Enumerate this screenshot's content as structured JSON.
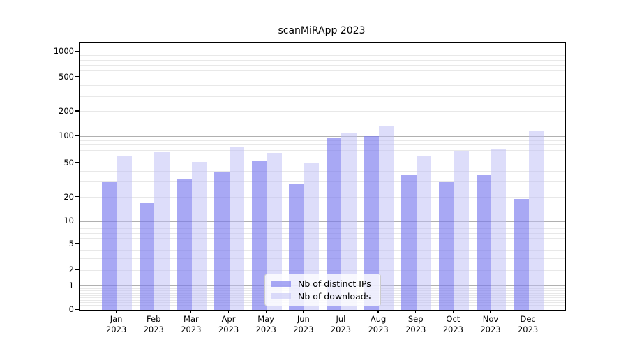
{
  "chart_data": {
    "type": "bar",
    "title": "scanMiRApp 2023",
    "x_year": "2023",
    "categories": [
      "Jan",
      "Feb",
      "Mar",
      "Apr",
      "May",
      "Jun",
      "Jul",
      "Aug",
      "Sep",
      "Oct",
      "Nov",
      "Dec"
    ],
    "series": [
      {
        "name": "Nb of distinct IPs",
        "color": "rgba(122,122,238,0.65)",
        "values": [
          30,
          17,
          33,
          39,
          54,
          29,
          96,
          101,
          36,
          30,
          36,
          19
        ]
      },
      {
        "name": "Nb of downloads",
        "color": "rgba(188,188,246,0.5)",
        "values": [
          60,
          66,
          52,
          77,
          65,
          50,
          108,
          134,
          60,
          68,
          71,
          115
        ]
      }
    ],
    "yticks": [
      0,
      1,
      2,
      5,
      10,
      20,
      50,
      100,
      200,
      500,
      1000
    ],
    "yscale": "symlog",
    "ylim": [
      0,
      1300
    ],
    "grid": true,
    "legend_position": "lower center"
  }
}
